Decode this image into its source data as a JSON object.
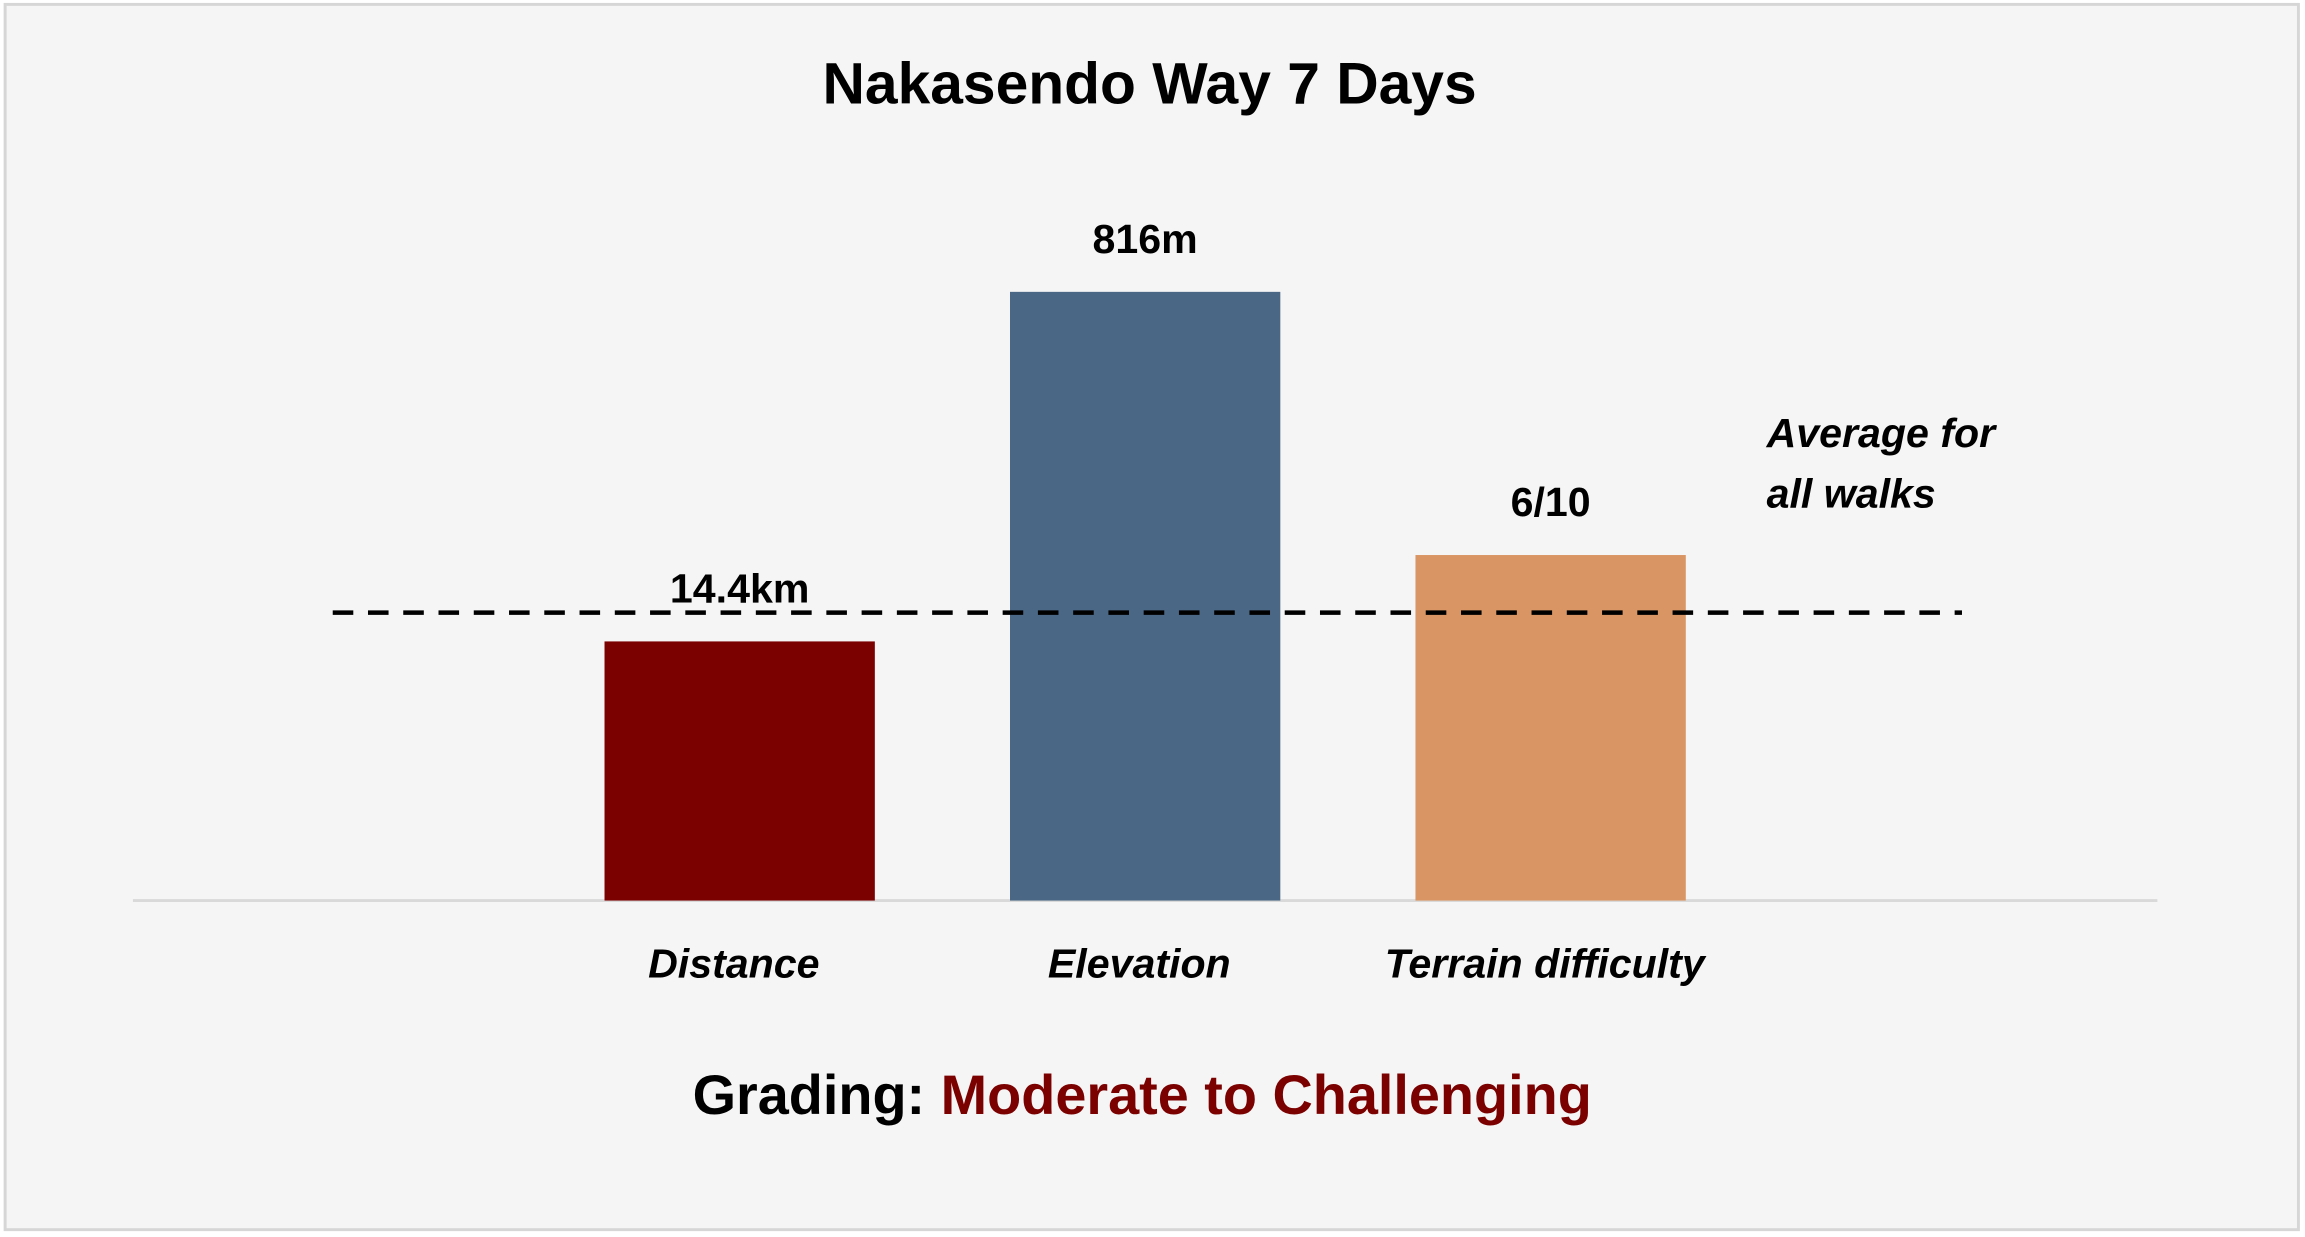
{
  "chart_data": {
    "type": "bar",
    "title": "Nakasendo Way 7 Days",
    "categories": [
      "Distance",
      "Elevation",
      "Terrain difficulty"
    ],
    "values": [
      14.4,
      816,
      6
    ],
    "value_labels": [
      "14.4km",
      "816m",
      "6/10"
    ],
    "averages": [
      16,
      386,
      5
    ],
    "colors": [
      "#7b0000",
      "#4a6785",
      "#d99563"
    ],
    "annotation": [
      "Average for",
      "all walks"
    ],
    "grading_label": "Grading:",
    "grading_value": "Moderate to Challenging"
  }
}
